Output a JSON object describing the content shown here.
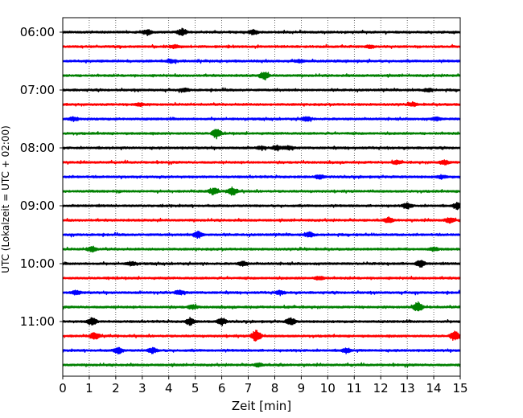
{
  "chart_data": {
    "type": "line",
    "title": "",
    "xlabel": "Zeit  [min]",
    "ylabel": "UTC (Lokalzeit = UTC + 02:00)",
    "xlim": [
      0,
      15
    ],
    "x_ticks": [
      0,
      1,
      2,
      3,
      4,
      5,
      6,
      7,
      8,
      9,
      10,
      11,
      12,
      13,
      14,
      15
    ],
    "y_tick_labels": [
      "06:00",
      "07:00",
      "08:00",
      "09:00",
      "10:00",
      "11:00"
    ],
    "grid": "vertical-dotted",
    "legend": "none",
    "trace_colors": [
      "#000000",
      "#ff0000",
      "#0000ff",
      "#008000"
    ],
    "traces": [
      {
        "start": "06:00",
        "color": "#000000",
        "events": [
          {
            "t": 3.2,
            "a": 0.35
          },
          {
            "t": 4.5,
            "a": 0.45
          },
          {
            "t": 7.2,
            "a": 0.3
          }
        ]
      },
      {
        "start": "06:15",
        "color": "#ff0000",
        "events": [
          {
            "t": 4.2,
            "a": 0.2
          },
          {
            "t": 11.6,
            "a": 0.2
          }
        ]
      },
      {
        "start": "06:30",
        "color": "#0000ff",
        "events": [
          {
            "t": 4.1,
            "a": 0.2
          },
          {
            "t": 8.9,
            "a": 0.2
          }
        ]
      },
      {
        "start": "06:45",
        "color": "#008000",
        "events": [
          {
            "t": 7.6,
            "a": 0.5
          }
        ]
      },
      {
        "start": "07:00",
        "color": "#000000",
        "events": [
          {
            "t": 4.6,
            "a": 0.2
          },
          {
            "t": 13.8,
            "a": 0.2
          }
        ]
      },
      {
        "start": "07:15",
        "color": "#ff0000",
        "events": [
          {
            "t": 2.9,
            "a": 0.2
          },
          {
            "t": 13.2,
            "a": 0.2
          }
        ]
      },
      {
        "start": "07:30",
        "color": "#0000ff",
        "events": [
          {
            "t": 0.4,
            "a": 0.25
          },
          {
            "t": 9.2,
            "a": 0.3
          },
          {
            "t": 14.1,
            "a": 0.2
          }
        ]
      },
      {
        "start": "07:45",
        "color": "#008000",
        "events": [
          {
            "t": 5.8,
            "a": 0.6
          }
        ]
      },
      {
        "start": "08:00",
        "color": "#000000",
        "events": [
          {
            "t": 7.5,
            "a": 0.2
          },
          {
            "t": 8.1,
            "a": 0.3
          },
          {
            "t": 8.5,
            "a": 0.25
          }
        ]
      },
      {
        "start": "08:15",
        "color": "#ff0000",
        "events": [
          {
            "t": 12.6,
            "a": 0.2
          },
          {
            "t": 14.4,
            "a": 0.3
          }
        ]
      },
      {
        "start": "08:30",
        "color": "#0000ff",
        "events": [
          {
            "t": 9.7,
            "a": 0.25
          },
          {
            "t": 14.3,
            "a": 0.2
          }
        ]
      },
      {
        "start": "08:45",
        "color": "#008000",
        "events": [
          {
            "t": 5.7,
            "a": 0.4
          },
          {
            "t": 6.4,
            "a": 0.55
          }
        ]
      },
      {
        "start": "09:00",
        "color": "#000000",
        "events": [
          {
            "t": 13.0,
            "a": 0.35
          },
          {
            "t": 14.9,
            "a": 0.45
          }
        ]
      },
      {
        "start": "09:15",
        "color": "#ff0000",
        "events": [
          {
            "t": 12.3,
            "a": 0.3
          },
          {
            "t": 14.6,
            "a": 0.35
          }
        ]
      },
      {
        "start": "09:30",
        "color": "#0000ff",
        "events": [
          {
            "t": 5.1,
            "a": 0.45
          },
          {
            "t": 9.3,
            "a": 0.3
          }
        ]
      },
      {
        "start": "09:45",
        "color": "#008000",
        "events": [
          {
            "t": 1.1,
            "a": 0.35
          },
          {
            "t": 14.0,
            "a": 0.2
          }
        ]
      },
      {
        "start": "10:00",
        "color": "#000000",
        "events": [
          {
            "t": 2.6,
            "a": 0.25
          },
          {
            "t": 6.8,
            "a": 0.3
          },
          {
            "t": 13.5,
            "a": 0.45
          }
        ]
      },
      {
        "start": "10:15",
        "color": "#ff0000",
        "events": [
          {
            "t": 9.7,
            "a": 0.25
          }
        ]
      },
      {
        "start": "10:30",
        "color": "#0000ff",
        "events": [
          {
            "t": 0.5,
            "a": 0.25
          },
          {
            "t": 4.4,
            "a": 0.3
          },
          {
            "t": 8.2,
            "a": 0.25
          }
        ]
      },
      {
        "start": "10:45",
        "color": "#008000",
        "events": [
          {
            "t": 4.9,
            "a": 0.3
          },
          {
            "t": 13.4,
            "a": 0.65
          }
        ]
      },
      {
        "start": "11:00",
        "color": "#000000",
        "events": [
          {
            "t": 1.1,
            "a": 0.5
          },
          {
            "t": 4.8,
            "a": 0.45
          },
          {
            "t": 6.0,
            "a": 0.45
          },
          {
            "t": 8.6,
            "a": 0.45
          }
        ]
      },
      {
        "start": "11:15",
        "color": "#ff0000",
        "events": [
          {
            "t": 1.2,
            "a": 0.45
          },
          {
            "t": 7.3,
            "a": 0.8
          },
          {
            "t": 14.8,
            "a": 0.6
          }
        ]
      },
      {
        "start": "11:30",
        "color": "#0000ff",
        "events": [
          {
            "t": 2.1,
            "a": 0.4
          },
          {
            "t": 3.4,
            "a": 0.35
          },
          {
            "t": 10.7,
            "a": 0.3
          }
        ]
      },
      {
        "start": "11:45",
        "color": "#008000",
        "events": [
          {
            "t": 7.4,
            "a": 0.2
          }
        ]
      }
    ]
  }
}
